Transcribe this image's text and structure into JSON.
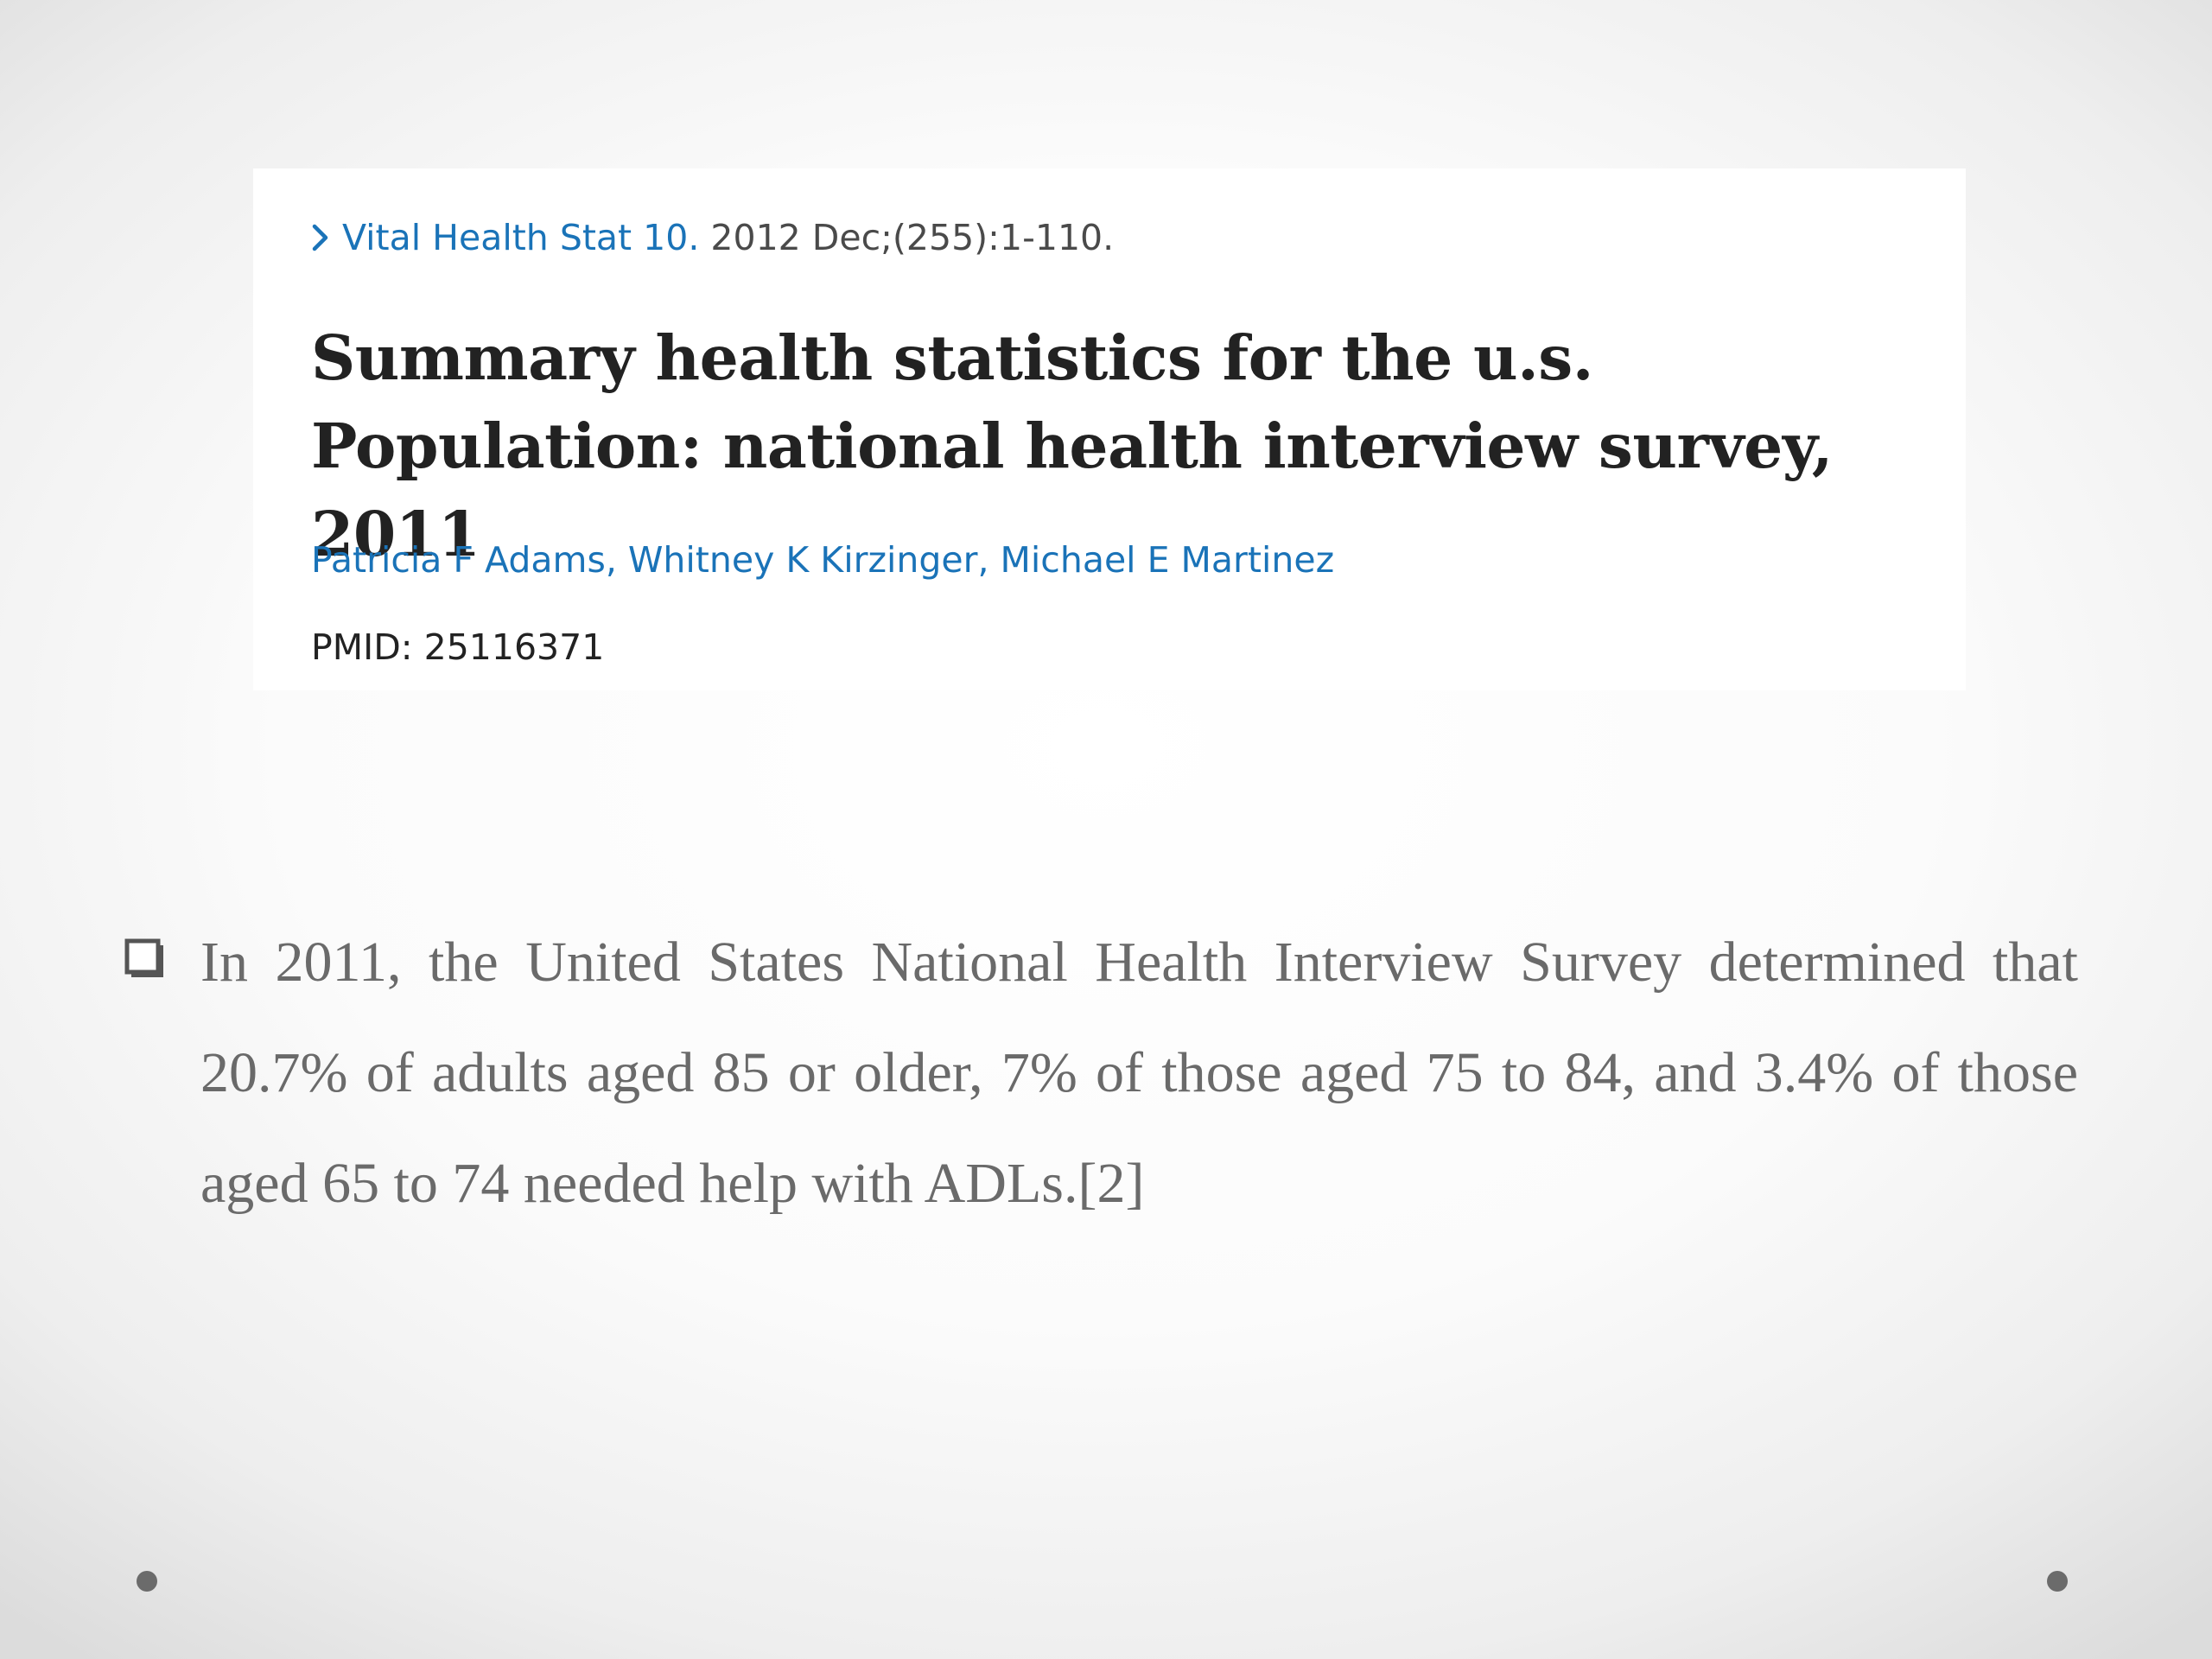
{
  "citation": {
    "journal": "Vital Health Stat 10.",
    "details": " 2012 Dec;(255):1-110.",
    "title": "Summary health statistics for the u.s. Population: national health interview survey, 2011",
    "authors": [
      "Patricia F Adams",
      "Whitney K Kirzinger",
      "Michael E Martinez"
    ],
    "author_separator": ", ",
    "pmid": "PMID: 25116371"
  },
  "bullet_text": "In 2011, the United States National Health Interview Survey determined that 20.7% of adults aged 85 or older, 7% of those aged 75 to 84, and 3.4% of those aged 65 to 74 needed help with ADLs.[2]",
  "icons": {
    "journal_link": "chevron-right-icon",
    "bullet": "hollow-square-bullet-icon",
    "slide_decoration": "dot-icon"
  },
  "colors": {
    "link": "#1a73b8",
    "title": "#222222",
    "body": "#6a6a6a"
  }
}
